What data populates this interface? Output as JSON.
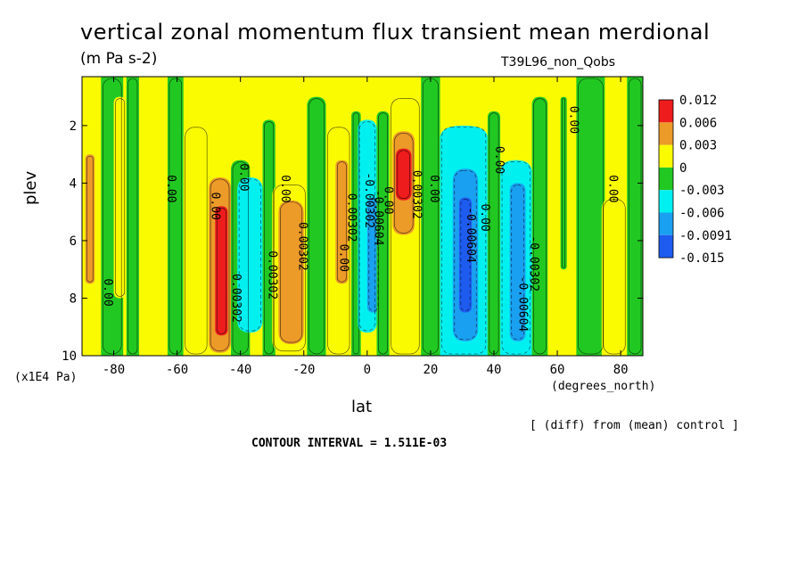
{
  "header": {
    "title": "vertical zonal momentum flux transient mean merdional",
    "units": "(m Pa s-2)",
    "run": "T39L96_non_Qobs",
    "yunits": "(x1E4 Pa)",
    "xunits": "(degrees_north)",
    "diff_note": "[ (diff) from (mean) control ]",
    "contour_interval": "CONTOUR INTERVAL = 1.511E-03"
  },
  "chart_data": {
    "type": "heatmap",
    "title": "vertical zonal momentum flux transient mean merdional",
    "xlabel": "lat",
    "ylabel": "plev",
    "xlim": [
      -90,
      87
    ],
    "ylim": [
      10,
      0.3
    ],
    "x_ticks": [
      -80,
      -60,
      -40,
      -20,
      0,
      20,
      40,
      60,
      80
    ],
    "x_tick_labels": [
      "-80",
      "-60",
      "-40",
      "-20",
      "0",
      "20",
      "40",
      "60",
      "80"
    ],
    "y_ticks": [
      2,
      4,
      6,
      8,
      10
    ],
    "y_tick_labels": [
      "2",
      "4",
      "6",
      "8",
      "10"
    ],
    "colorbar": {
      "labels": [
        "0.012",
        "0.006",
        "0.003",
        "0",
        "-0.003",
        "-0.006",
        "-0.0091",
        "-0.015"
      ],
      "colors": [
        "#ee1c1c",
        "#ec9a28",
        "#fbfb00",
        "#22c822",
        "#00f0f0",
        "#1aa0f0",
        "#1e5cf0"
      ]
    },
    "colors": {
      "red": "#ee1c1c",
      "orange": "#ec9a28",
      "yellow": "#fbfb00",
      "green": "#22c822",
      "cyan": "#00f0f0",
      "lightblue": "#1aa0f0",
      "blue": "#1e5cf0"
    },
    "bands": [
      {
        "lat": [
          -90,
          -84
        ],
        "p": [
          0.3,
          10
        ],
        "color": "yellow"
      },
      {
        "lat": [
          -89,
          -86
        ],
        "p": [
          3,
          7.5
        ],
        "color": "orange"
      },
      {
        "lat": [
          -84,
          -77
        ],
        "p": [
          0.3,
          10
        ],
        "color": "green"
      },
      {
        "lat": [
          -80,
          -76
        ],
        "p": [
          1,
          8
        ],
        "color": "yellow"
      },
      {
        "lat": [
          -76,
          -72
        ],
        "p": [
          0.3,
          10
        ],
        "color": "green"
      },
      {
        "lat": [
          -72,
          -63
        ],
        "p": [
          0.3,
          10
        ],
        "color": "yellow"
      },
      {
        "lat": [
          -63,
          -58
        ],
        "p": [
          0.3,
          10
        ],
        "color": "green"
      },
      {
        "lat": [
          -58,
          -50
        ],
        "p": [
          2,
          10
        ],
        "color": "yellow"
      },
      {
        "lat": [
          -50,
          -43
        ],
        "p": [
          3.8,
          9.9
        ],
        "color": "orange"
      },
      {
        "lat": [
          -48,
          -44
        ],
        "p": [
          4.8,
          9.3
        ],
        "color": "red"
      },
      {
        "lat": [
          -43,
          -37
        ],
        "p": [
          3.2,
          10
        ],
        "color": "green"
      },
      {
        "lat": [
          -41,
          -33
        ],
        "p": [
          3.8,
          9.2
        ],
        "color": "cyan"
      },
      {
        "lat": [
          -33,
          -29
        ],
        "p": [
          1.8,
          10
        ],
        "color": "green"
      },
      {
        "lat": [
          -30,
          -19
        ],
        "p": [
          4,
          9.9
        ],
        "color": "yellow"
      },
      {
        "lat": [
          -28,
          -20
        ],
        "p": [
          4.6,
          9.6
        ],
        "color": "orange"
      },
      {
        "lat": [
          -19,
          -13
        ],
        "p": [
          1,
          10
        ],
        "color": "green"
      },
      {
        "lat": [
          -13,
          -5
        ],
        "p": [
          2,
          10
        ],
        "color": "yellow"
      },
      {
        "lat": [
          -10,
          -6
        ],
        "p": [
          3.2,
          7.5
        ],
        "color": "orange"
      },
      {
        "lat": [
          -5,
          -2
        ],
        "p": [
          1.5,
          10
        ],
        "color": "green"
      },
      {
        "lat": [
          -3,
          3
        ],
        "p": [
          1.8,
          9.2
        ],
        "color": "cyan"
      },
      {
        "lat": [
          0,
          4
        ],
        "p": [
          4.5,
          8.5
        ],
        "color": "lightblue"
      },
      {
        "lat": [
          3,
          7
        ],
        "p": [
          1.5,
          10
        ],
        "color": "green"
      },
      {
        "lat": [
          7,
          17
        ],
        "p": [
          1,
          10
        ],
        "color": "yellow"
      },
      {
        "lat": [
          8,
          15
        ],
        "p": [
          2.2,
          5.8
        ],
        "color": "orange"
      },
      {
        "lat": [
          9,
          14
        ],
        "p": [
          2.8,
          4.6
        ],
        "color": "red"
      },
      {
        "lat": [
          17,
          23
        ],
        "p": [
          0.3,
          10
        ],
        "color": "green"
      },
      {
        "lat": [
          23,
          38
        ],
        "p": [
          2,
          10
        ],
        "color": "cyan"
      },
      {
        "lat": [
          27,
          35
        ],
        "p": [
          3.5,
          9.5
        ],
        "color": "lightblue"
      },
      {
        "lat": [
          29,
          33
        ],
        "p": [
          4.5,
          8.5
        ],
        "color": "blue"
      },
      {
        "lat": [
          38,
          42
        ],
        "p": [
          1.5,
          10
        ],
        "color": "green"
      },
      {
        "lat": [
          42,
          52
        ],
        "p": [
          3.2,
          10
        ],
        "color": "cyan"
      },
      {
        "lat": [
          45,
          50
        ],
        "p": [
          4,
          9.5
        ],
        "color": "lightblue"
      },
      {
        "lat": [
          52,
          57
        ],
        "p": [
          1,
          10
        ],
        "color": "green"
      },
      {
        "lat": [
          57,
          66
        ],
        "p": [
          0.3,
          10
        ],
        "color": "yellow"
      },
      {
        "lat": [
          61,
          63
        ],
        "p": [
          1,
          7
        ],
        "color": "green"
      },
      {
        "lat": [
          66,
          75
        ],
        "p": [
          0.3,
          10
        ],
        "color": "green"
      },
      {
        "lat": [
          74,
          82
        ],
        "p": [
          4.5,
          10
        ],
        "color": "yellow"
      },
      {
        "lat": [
          82,
          87
        ],
        "p": [
          0.3,
          10
        ],
        "color": "green"
      }
    ],
    "contour_labels": [
      {
        "text": "0.00",
        "lat": -83,
        "p": 7.8
      },
      {
        "text": "0.00",
        "lat": -63,
        "p": 4.2
      },
      {
        "text": "0.00",
        "lat": -49,
        "p": 4.8
      },
      {
        "text": "0.00",
        "lat": -40,
        "p": 3.8
      },
      {
        "text": "0.00302",
        "lat": -42.5,
        "p": 8
      },
      {
        "text": "0.00302",
        "lat": -31,
        "p": 7.2
      },
      {
        "text": "0.00",
        "lat": -27,
        "p": 4.2
      },
      {
        "text": "0.00302",
        "lat": -21.5,
        "p": 6.2
      },
      {
        "text": "0.00",
        "lat": -8.5,
        "p": 6.6
      },
      {
        "text": "0.00302",
        "lat": -6,
        "p": 5.2
      },
      {
        "text": "-0.00302",
        "lat": -0.5,
        "p": 4.6
      },
      {
        "text": "-0.00604",
        "lat": 2.5,
        "p": 5.2
      },
      {
        "text": "0.00",
        "lat": 5.5,
        "p": 4.6
      },
      {
        "text": "0.00302",
        "lat": 14.5,
        "p": 4.4
      },
      {
        "text": "0.00",
        "lat": 20,
        "p": 4.2
      },
      {
        "text": "-0.00604",
        "lat": 31.5,
        "p": 5.8
      },
      {
        "text": "0.00",
        "lat": 36,
        "p": 5.2
      },
      {
        "text": "0.00",
        "lat": 40.5,
        "p": 3.2
      },
      {
        "text": "-0.00604",
        "lat": 48,
        "p": 8.2
      },
      {
        "text": "-0.00302",
        "lat": 51.5,
        "p": 6.8
      },
      {
        "text": "0.00",
        "lat": 64,
        "p": 1.8
      },
      {
        "text": "0.00",
        "lat": 76.5,
        "p": 4.2
      }
    ]
  }
}
